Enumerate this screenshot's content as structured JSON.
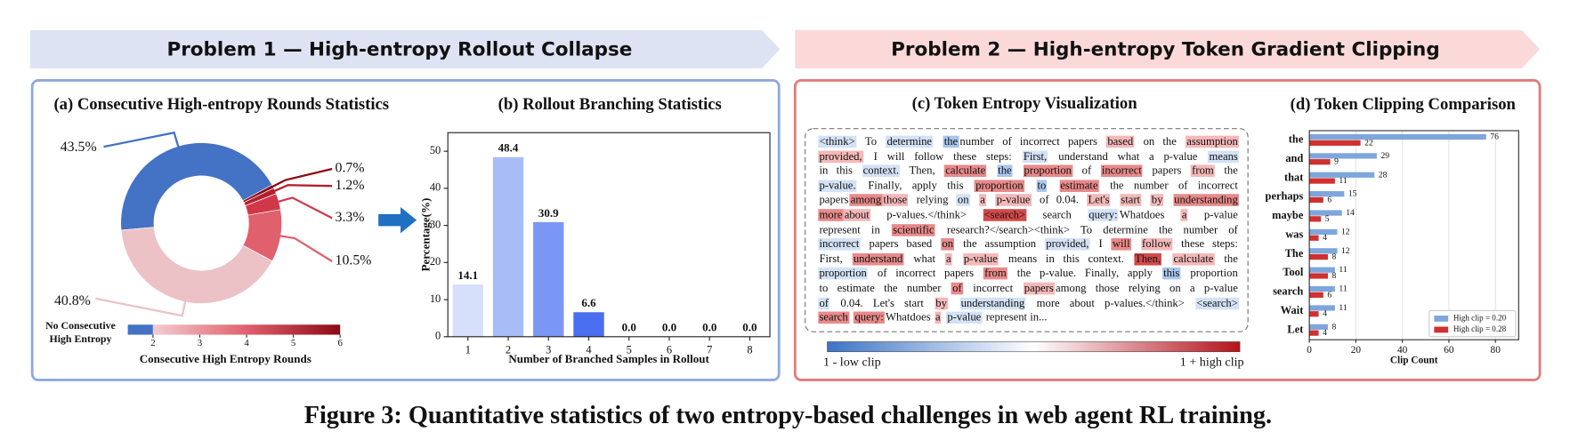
{
  "banners": [
    {
      "title": "Problem 1 — High-entropy Rollout Collapse",
      "color": "#4a6fc9",
      "bg": "#dde3f3",
      "border": "#8fa9dc"
    },
    {
      "title": "Problem 2 — High-entropy Token Gradient Clipping",
      "color": "#c8102e",
      "bg": "#fbd9d9",
      "border": "#e07c7c"
    }
  ],
  "chart_data": [
    {
      "type": "donut",
      "title": "(a) Consecutive High-entropy Rounds Statistics",
      "values": [
        43.5,
        0.7,
        1.2,
        3.3,
        10.5,
        40.8
      ],
      "value_labels": [
        "43.5%",
        "0.7%",
        "1.2%",
        "3.3%",
        "10.5%",
        "40.8%"
      ],
      "colors": [
        "#4472c4",
        "#8b0a14",
        "#b51d2c",
        "#d0384a",
        "#e0606e",
        "#ecc2c6"
      ],
      "label_colors": [
        "#3a62b4",
        "#9b0d1a",
        "#9b0d1a",
        "#9b0d1a",
        "#9b0d1a",
        "#9b0d1a"
      ],
      "colorbar": {
        "label": "Consecutive High Entropy Rounds",
        "first_label": [
          "No Consecutive",
          "High Entropy"
        ],
        "first_color": "#4472c4",
        "lim": [
          2,
          6
        ],
        "ticks": [
          2,
          3,
          4,
          5,
          6
        ],
        "colors": [
          "#f3cdd0",
          "#e0606e",
          "#8b0a14"
        ]
      }
    },
    {
      "type": "bar",
      "title": "(b) Rollout Branching Statistics",
      "categories": [
        1,
        2,
        3,
        4,
        5,
        6,
        7,
        8
      ],
      "values": [
        14.1,
        48.4,
        30.9,
        6.6,
        0.0,
        0.0,
        0.0,
        0.0
      ],
      "value_labels": [
        "14.1",
        "48.4",
        "30.9",
        "6.6",
        "0.0",
        "0.0",
        "0.0",
        "0.0"
      ],
      "colors": [
        "#d6e0fb",
        "#a8bcf7",
        "#7b97f5",
        "#4a6ef0",
        "#4a6ef0",
        "#4a6ef0",
        "#4a6ef0",
        "#4a6ef0"
      ],
      "xlabel": "Number of Branched Samples in Rollout",
      "ylabel": "Percentage(%)",
      "ylim": [
        0,
        55
      ],
      "yticks": [
        0,
        10,
        20,
        30,
        40,
        50
      ]
    },
    {
      "type": "barh",
      "title": "(d) Token Clipping Comparison",
      "categories": [
        "the",
        "and",
        "that",
        "perhaps",
        "maybe",
        "was",
        "The",
        "Tool",
        "search",
        "Wait",
        "Let"
      ],
      "series": [
        {
          "name": "High clip = 0.20",
          "color": "#7ea6dc",
          "values": [
            76,
            29,
            28,
            15,
            14,
            12,
            12,
            11,
            11,
            11,
            8
          ]
        },
        {
          "name": "High clip = 0.28",
          "color": "#d03030",
          "values": [
            22,
            9,
            11,
            6,
            5,
            4,
            8,
            8,
            6,
            4,
            4
          ]
        }
      ],
      "xlabel": "Clip Count",
      "xlim": [
        0,
        90
      ],
      "xticks": [
        0,
        20,
        40,
        60,
        80
      ],
      "grid": true,
      "legend": "lower right"
    }
  ],
  "token_panel": {
    "title": "(c) Token Entropy Visualization",
    "lines": [
      [
        {
          "text": "<think>",
          "bg": "#d3e2f5"
        },
        " To ",
        {
          "text": "determine",
          "bg": "#d3e2f5"
        },
        " ",
        {
          "text": "the",
          "bg": "#a9c6ec"
        },
        "number of incorrect papers ",
        {
          "text": "based",
          "bg": "#f4b8b8"
        },
        " on the ",
        {
          "text": "assumption",
          "bg": "#f4b8b8"
        }
      ],
      [
        {
          "text": "provided,",
          "bg": "#f4b8b8"
        },
        " I will follow these steps: ",
        {
          "text": "First,",
          "bg": "#d3e2f5"
        },
        " understand what a p-value ",
        {
          "text": "means",
          "bg": "#d3e2f5"
        }
      ],
      [
        "in this ",
        {
          "text": "context.",
          "bg": "#d3e2f5"
        },
        " Then, ",
        {
          "text": "calculate",
          "bg": "#e88a8a"
        },
        " ",
        {
          "text": "the",
          "bg": "#a9c6ec"
        },
        " ",
        {
          "text": "proportion",
          "bg": "#e88a8a"
        },
        " of ",
        {
          "text": "incorrect",
          "bg": "#e88a8a"
        },
        " papers ",
        {
          "text": "from",
          "bg": "#f4b8b8"
        },
        " the"
      ],
      [
        {
          "text": "p-value.",
          "bg": "#d3e2f5"
        },
        " Finally, apply this ",
        {
          "text": "proportion",
          "bg": "#e88a8a"
        },
        " ",
        {
          "text": "to",
          "bg": "#a9c6ec"
        },
        " ",
        {
          "text": "estimate",
          "bg": "#e88a8a"
        },
        " the number of incorrect"
      ],
      [
        "papers",
        {
          "text": "among",
          "bg": "#e88a8a"
        },
        {
          "text": "those",
          "bg": "#f4b8b8"
        },
        " relying ",
        {
          "text": "on",
          "bg": "#d3e2f5"
        },
        " ",
        {
          "text": "a",
          "bg": "#f4b8b8"
        },
        " ",
        {
          "text": "p-value",
          "bg": "#f4b8b8"
        },
        " of 0.04. ",
        {
          "text": "Let's",
          "bg": "#f4b8b8"
        },
        " ",
        {
          "text": "start",
          "bg": "#f4b8b8"
        },
        " ",
        {
          "text": "by",
          "bg": "#f4b8b8"
        },
        " ",
        {
          "text": "understanding",
          "bg": "#e88a8a"
        }
      ],
      [
        {
          "text": "more",
          "bg": "#e88a8a"
        },
        {
          "text": "about",
          "bg": "#f4b8b8"
        },
        " p-values.</think> ",
        {
          "text": "<search>",
          "bg": "#d24a4a"
        },
        " search ",
        {
          "text": "query:",
          "bg": "#d3e2f5"
        },
        "Whatdoes ",
        {
          "text": "a",
          "bg": "#f4b8b8"
        },
        " p-value"
      ],
      [
        "represent in ",
        {
          "text": "scientific",
          "bg": "#e88a8a"
        },
        " research?</search><think> To determine the number of"
      ],
      [
        {
          "text": "incorrect",
          "bg": "#d3e2f5"
        },
        " papers based ",
        {
          "text": "on",
          "bg": "#e88a8a"
        },
        " the assumption ",
        {
          "text": "provided,",
          "bg": "#d3e2f5"
        },
        " I ",
        {
          "text": "will",
          "bg": "#e88a8a"
        },
        " ",
        {
          "text": "follow",
          "bg": "#f4b8b8"
        },
        " these steps:"
      ],
      [
        "First, ",
        {
          "text": "understand",
          "bg": "#e88a8a"
        },
        " what ",
        {
          "text": "a",
          "bg": "#f4b8b8"
        },
        " ",
        {
          "text": "p-value",
          "bg": "#f4b8b8"
        },
        " means in this context. ",
        {
          "text": "Then,",
          "bg": "#d24a4a"
        },
        " ",
        {
          "text": "calculate",
          "bg": "#f4b8b8"
        },
        " the"
      ],
      [
        {
          "text": "proportion",
          "bg": "#d3e2f5"
        },
        " of incorrect papers ",
        {
          "text": "from",
          "bg": "#e88a8a"
        },
        " the p-value. Finally, apply ",
        {
          "text": "this",
          "bg": "#a9c6ec"
        },
        " proportion"
      ],
      [
        "to estimate the number ",
        {
          "text": "of",
          "bg": "#e88a8a"
        },
        " incorrect ",
        {
          "text": "papers",
          "bg": "#f4b8b8"
        },
        "among those relying on a p-value"
      ],
      [
        {
          "text": "of",
          "bg": "#d3e2f5"
        },
        " 0.04. Let's start ",
        {
          "text": "by",
          "bg": "#f4b8b8"
        },
        " ",
        {
          "text": "understanding",
          "bg": "#d3e2f5"
        },
        " more about p-values.</think> ",
        {
          "text": "<search>",
          "bg": "#d3e2f5"
        }
      ],
      [
        {
          "text": "search",
          "bg": "#e88a8a"
        },
        " ",
        {
          "text": "query:",
          "bg": "#e88a8a"
        },
        "Whatdoes ",
        {
          "text": "a",
          "bg": "#f4b8b8"
        },
        " ",
        {
          "text": "p-value",
          "bg": "#d3e2f5"
        },
        " represent in..."
      ]
    ],
    "colorbar": {
      "low_label": "1 - low clip",
      "high_label": "1 + high clip",
      "colors": [
        "#3d74c6",
        "#ffffff",
        "#b5121b"
      ],
      "low_color": "#2f5fa8",
      "high_color": "#b5121b"
    }
  },
  "caption": "Figure 3: Quantitative statistics of two entropy-based challenges in web agent RL training."
}
